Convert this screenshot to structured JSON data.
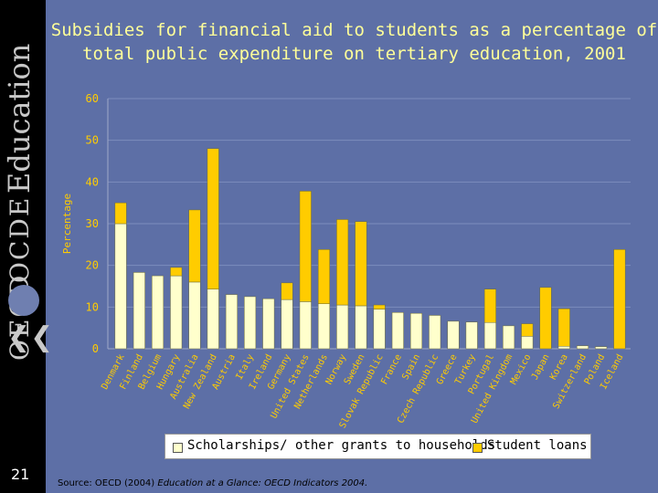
{
  "slide": {
    "page_number": "21",
    "source_prefix": "Source: OECD (2004) ",
    "source_italic": "Education at a Glance: OECD Indicators 2004.",
    "logos": {
      "oecd": "OECD",
      "ocde": "OCDE",
      "education": "Education"
    }
  },
  "colors": {
    "background": "#5d6fa6",
    "scholarships": "#ffffcc",
    "loans": "#ffcc00",
    "title": "#ffff99",
    "axis_text": "#ffcc00"
  },
  "chart_data": {
    "type": "bar",
    "stacked": true,
    "title": "Subsidies for financial aid to students as a percentage of total public expenditure on tertiary education, 2001",
    "ylabel": "Percentage",
    "xlabel": "",
    "ylim": [
      0,
      60
    ],
    "yticks": [
      0,
      10,
      20,
      30,
      40,
      50,
      60
    ],
    "grid": true,
    "legend_position": "bottom",
    "categories": [
      "Denmark",
      "Finland",
      "Belgium",
      "Hungary",
      "Australia",
      "New Zealand",
      "Austria",
      "Italy",
      "Ireland",
      "Germany",
      "United States",
      "Netherlands",
      "Norway",
      "Sweden",
      "Slovak Republic",
      "France",
      "Spain",
      "Czech Republic",
      "Greece",
      "Turkey",
      "Portugal",
      "United Kingdom",
      "Mexico",
      "Japan",
      "Korea",
      "Switzerland",
      "Poland",
      "Iceland"
    ],
    "series": [
      {
        "name": "Scholarships/ other grants to households",
        "values": [
          30,
          18.3,
          17.5,
          17.5,
          16,
          14.3,
          13,
          12.5,
          12,
          11.8,
          11.3,
          10.8,
          10.5,
          10.3,
          9.5,
          8.7,
          8.5,
          8,
          6.6,
          6.4,
          6.3,
          5.5,
          3,
          0,
          0.6,
          0.7,
          0.5,
          0
        ]
      },
      {
        "name": "Student loans",
        "values": [
          5,
          0,
          0,
          2,
          17.3,
          33.7,
          0,
          0,
          0,
          4,
          26.5,
          13,
          20.5,
          20.2,
          1,
          0,
          0,
          0,
          0,
          0,
          8,
          0,
          3,
          14.7,
          9,
          0,
          0,
          23.8
        ]
      }
    ]
  }
}
